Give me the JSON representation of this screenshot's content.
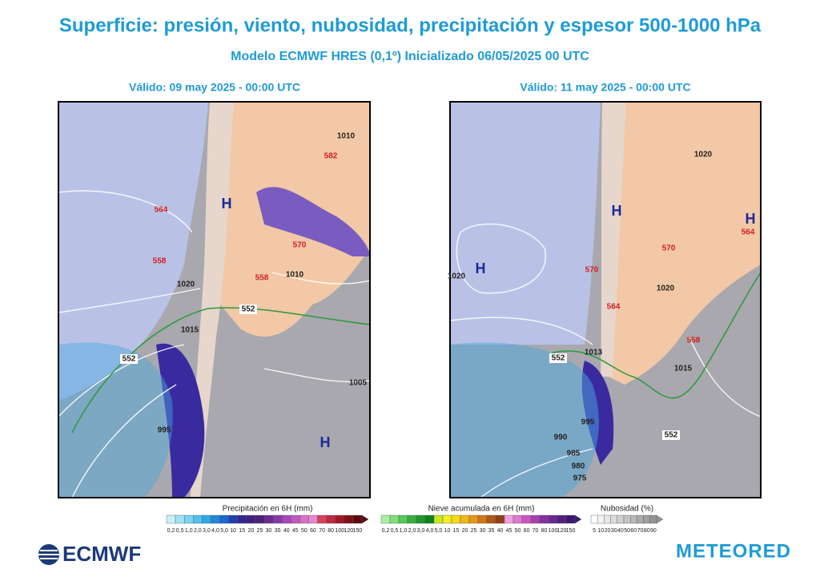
{
  "header": {
    "title": "Superficie: presión, viento, nubosidad, precipitación y espesor 500-1000 hPa",
    "subtitle": "Modelo ECMWF HRES (0,1º)  Inicializado 06/05/2025 00 UTC"
  },
  "panels": [
    {
      "title": "Válido: 09 may 2025 - 00:00 UTC",
      "labels": [
        "H",
        "H",
        "1010",
        "1010",
        "1015",
        "1020",
        "1005",
        "995",
        "564",
        "558",
        "558",
        "570",
        "552",
        "552",
        "582"
      ]
    },
    {
      "title": "Válido: 11 may 2025 - 00:00 UTC",
      "labels": [
        "H",
        "H",
        "H",
        "1020",
        "1020",
        "1020",
        "1015",
        "1013",
        "995",
        "990",
        "985",
        "980",
        "975",
        "564",
        "570",
        "570",
        "564",
        "558",
        "552",
        "552"
      ]
    }
  ],
  "legends": [
    {
      "title": "Precipitación en 6H (mm)",
      "ticks": [
        "0,2",
        "0,5",
        "1,0",
        "2,0",
        "3,0",
        "4,0",
        "5,0",
        "10",
        "15",
        "20",
        "25",
        "30",
        "35",
        "40",
        "45",
        "50",
        "60",
        "70",
        "80",
        "100",
        "120",
        "150"
      ],
      "colors": [
        "#c8f0f8",
        "#a0e4f4",
        "#78d4f0",
        "#50c0ec",
        "#30a8e4",
        "#2088dc",
        "#1868d0",
        "#2040b0",
        "#302890",
        "#402080",
        "#502078",
        "#6a2a90",
        "#8838a8",
        "#a848b8",
        "#c058c0",
        "#d870c8",
        "#e888d0",
        "#d84060",
        "#c02840",
        "#a01828",
        "#801018",
        "#600810"
      ]
    },
    {
      "title": "Nieve acumulada en 6H (mm)",
      "ticks": [
        "0,2",
        "0,5",
        "1,0",
        "2,0",
        "3,0",
        "4,0",
        "5,0",
        "10",
        "15",
        "20",
        "25",
        "30",
        "35",
        "40",
        "45",
        "50",
        "60",
        "70",
        "80",
        "100",
        "120",
        "150"
      ],
      "colors": [
        "#a8f0a0",
        "#80e078",
        "#58c858",
        "#38b040",
        "#209830",
        "#108020",
        "#c8e820",
        "#f0f020",
        "#f8d818",
        "#f0b818",
        "#e89818",
        "#d07818",
        "#b05818",
        "#904018",
        "#f0a0e0",
        "#e078d0",
        "#c858c0",
        "#a840b0",
        "#8830a0",
        "#682890",
        "#502080",
        "#381870"
      ]
    },
    {
      "title": "Nubosidad (%)",
      "ticks": [
        "5",
        "10",
        "20",
        "30",
        "40",
        "50",
        "60",
        "70",
        "80",
        "90"
      ],
      "colors": [
        "#ffffff",
        "#f4f4f4",
        "#e8e8e8",
        "#dcdcdc",
        "#d0d0d0",
        "#c4c4c4",
        "#b8b8b8",
        "#acacac",
        "#a0a0a0",
        "#949494"
      ]
    }
  ],
  "logos": {
    "left": "ECMWF",
    "right": "METEORED"
  }
}
